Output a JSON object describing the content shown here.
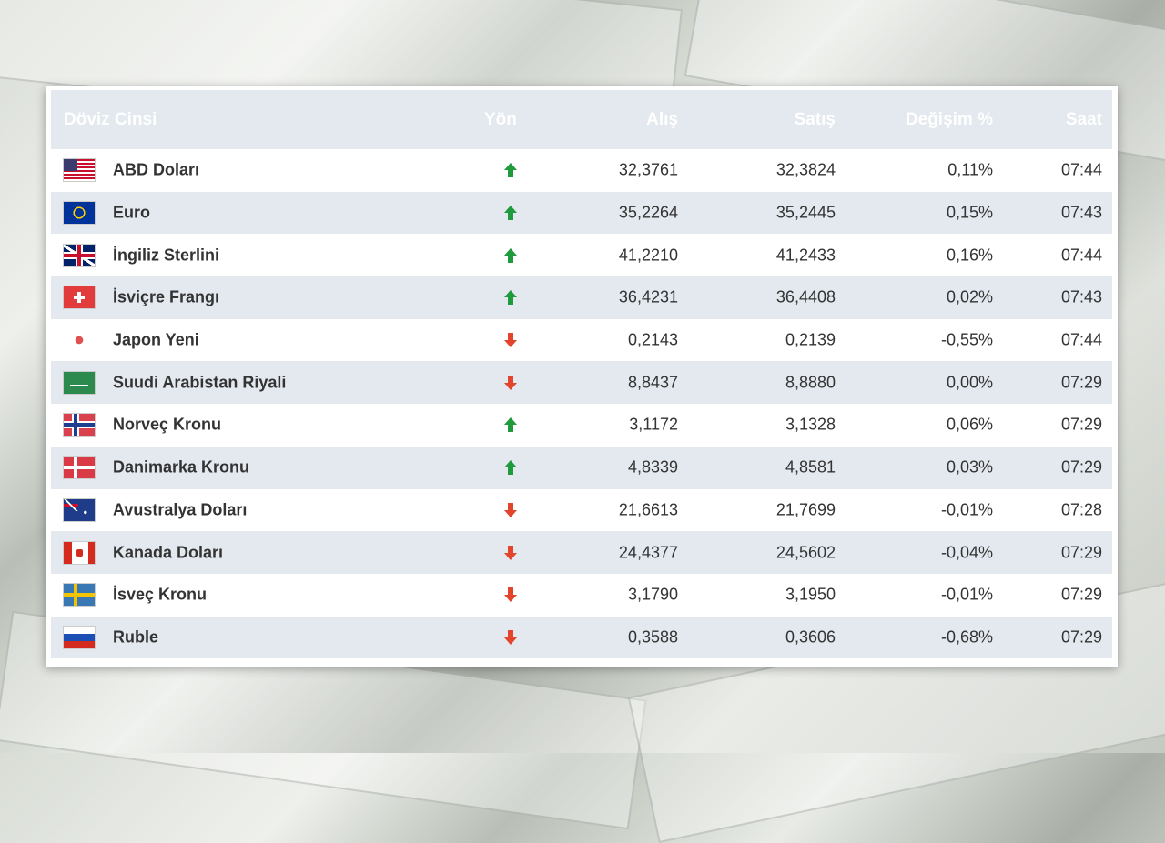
{
  "table": {
    "headers": [
      "Döviz Cinsi",
      "Yön",
      "Alış",
      "Satış",
      "Değişim %",
      "Saat"
    ],
    "rows": [
      {
        "name": "ABD Doları",
        "direction": "up",
        "alis": "32,3761",
        "satis": "32,3824",
        "degisim": "0,11%",
        "saat": "07:44"
      },
      {
        "name": "Euro",
        "direction": "up",
        "alis": "35,2264",
        "satis": "35,2445",
        "degisim": "0,15%",
        "saat": "07:43"
      },
      {
        "name": "İngiliz Sterlini",
        "direction": "up",
        "alis": "41,2210",
        "satis": "41,2433",
        "degisim": "0,16%",
        "saat": "07:44"
      },
      {
        "name": "İsviçre Frangı",
        "direction": "up",
        "alis": "36,4231",
        "satis": "36,4408",
        "degisim": "0,02%",
        "saat": "07:43"
      },
      {
        "name": "Japon Yeni",
        "direction": "down",
        "alis": "0,2143",
        "satis": "0,2139",
        "degisim": "-0,55%",
        "saat": "07:44"
      },
      {
        "name": "Suudi Arabistan Riyali",
        "direction": "down",
        "alis": "8,8437",
        "satis": "8,8880",
        "degisim": "0,00%",
        "saat": "07:29"
      },
      {
        "name": "Norveç Kronu",
        "direction": "up",
        "alis": "3,1172",
        "satis": "3,1328",
        "degisim": "0,06%",
        "saat": "07:29"
      },
      {
        "name": "Danimarka Kronu",
        "direction": "up",
        "alis": "4,8339",
        "satis": "4,8581",
        "degisim": "0,03%",
        "saat": "07:29"
      },
      {
        "name": "Avustralya Doları",
        "direction": "down",
        "alis": "21,6613",
        "satis": "21,7699",
        "degisim": "-0,01%",
        "saat": "07:28"
      },
      {
        "name": "Kanada Doları",
        "direction": "down",
        "alis": "24,4377",
        "satis": "24,5602",
        "degisim": "-0,04%",
        "saat": "07:29"
      },
      {
        "name": "İsveç Kronu",
        "direction": "down",
        "alis": "3,1790",
        "satis": "3,1950",
        "degisim": "-0,01%",
        "saat": "07:29"
      },
      {
        "name": "Ruble",
        "direction": "down",
        "alis": "0,3588",
        "satis": "0,3606",
        "degisim": "-0,68%",
        "saat": "07:29"
      }
    ]
  }
}
